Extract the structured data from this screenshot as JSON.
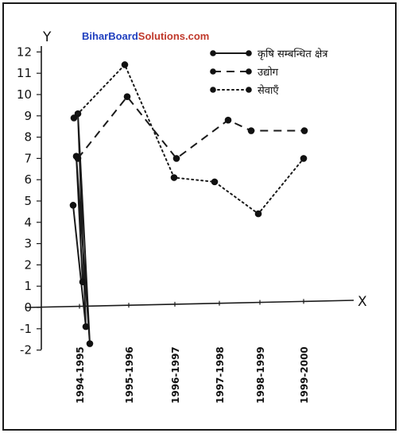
{
  "watermark": {
    "part1": "BiharBoard",
    "part2": "Solutions",
    "part3": ".com",
    "color1": "#1f3fbf",
    "color2": "#c0392b"
  },
  "chart_data": {
    "type": "line",
    "ylabel": "Y",
    "xlabel": "X",
    "categories": [
      "1994-1995",
      "1995-1996",
      "1996-1997",
      "1997-1998",
      "1998-1999",
      "1999-2000"
    ],
    "ylim": [
      -2,
      12
    ],
    "yticks": [
      "12",
      "11",
      "10",
      "9",
      "8",
      "7",
      "6",
      "5",
      "4",
      "3",
      "2",
      "1",
      "0",
      "-1",
      "-2"
    ],
    "series": [
      {
        "name": "कृषि सम्बन्धित क्षेत्र",
        "style": "solid",
        "values": [
          4.8,
          -0.9,
          9.1,
          -1.7,
          7.1,
          1.2
        ]
      },
      {
        "name": "उद्योग",
        "style": "dashed",
        "values": [
          7.0,
          9.9,
          7.0,
          8.8,
          8.3,
          8.3
        ]
      },
      {
        "name": "सेवाएँ",
        "style": "dotted",
        "values": [
          8.9,
          11.4,
          6.1,
          5.9,
          4.4,
          7.0
        ]
      }
    ]
  }
}
